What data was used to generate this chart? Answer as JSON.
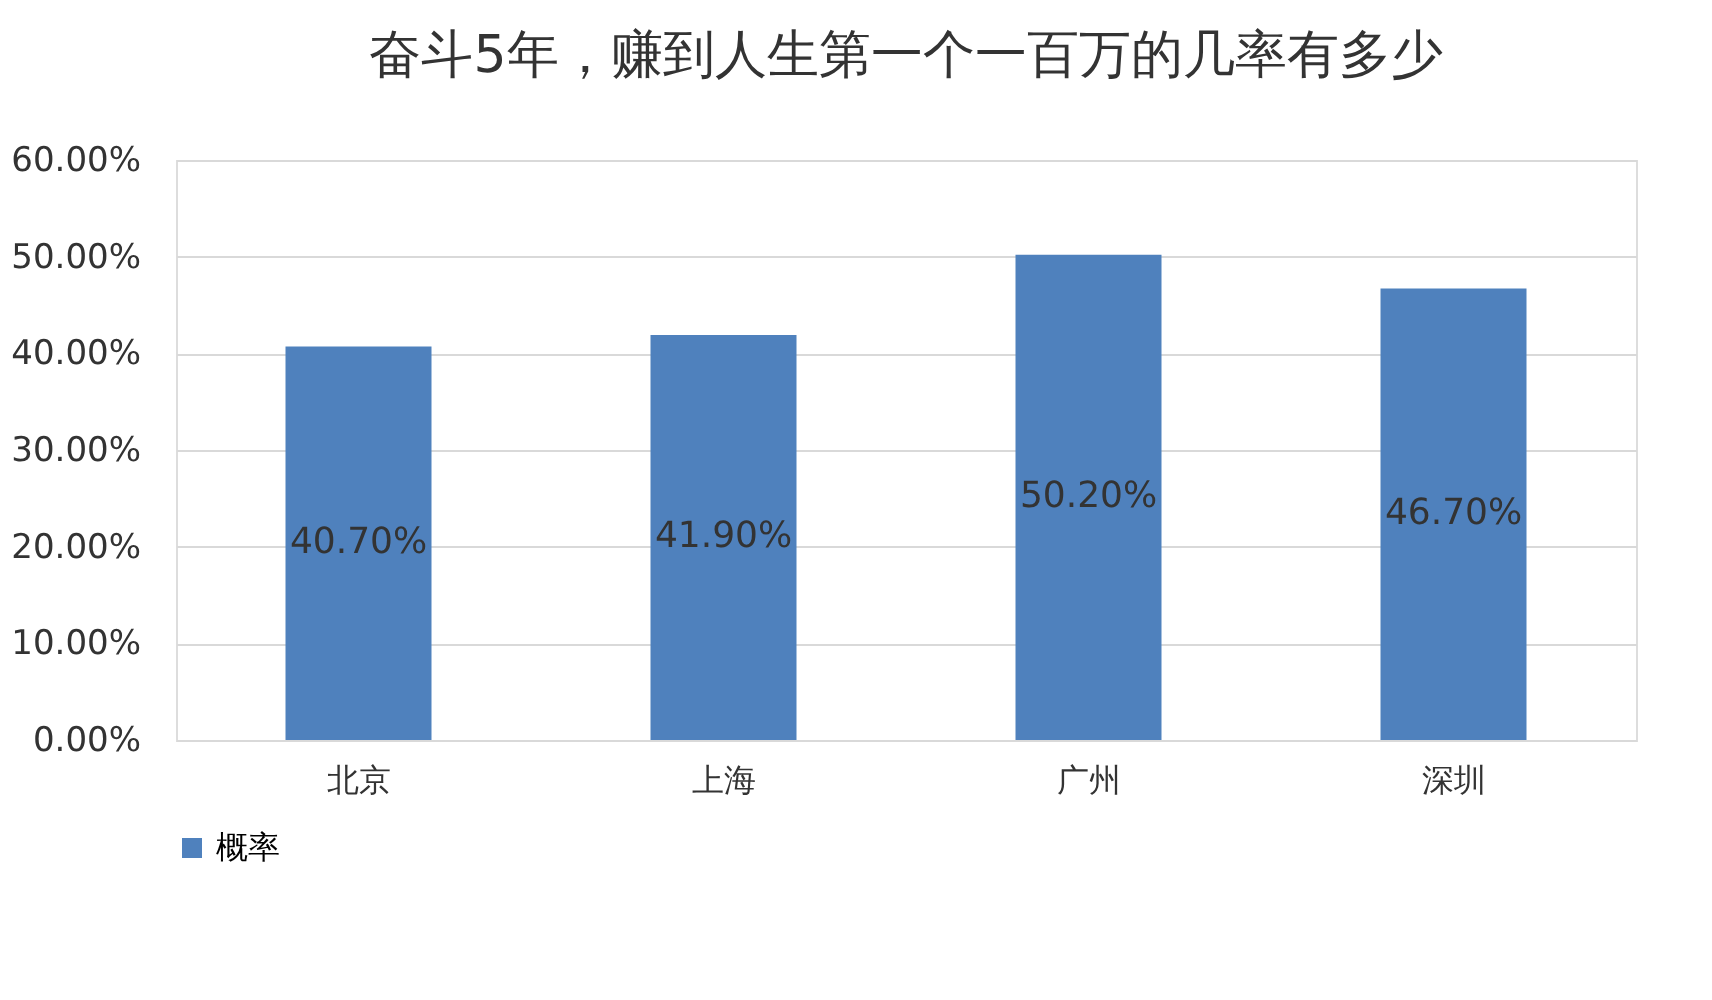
{
  "chart_data": {
    "type": "bar",
    "title": "奋斗5年，赚到人生第一个一百万的几率有多少",
    "categories": [
      "北京",
      "上海",
      "广州",
      "深圳"
    ],
    "series": [
      {
        "name": "概率",
        "color": "#4f81bd",
        "values": [
          40.7,
          41.9,
          50.2,
          46.7
        ],
        "value_labels": [
          "40.70%",
          "41.90%",
          "50.20%",
          "46.70%"
        ]
      }
    ],
    "ylim": [
      0,
      60
    ],
    "yticks": [
      {
        "value": 0,
        "label": "0.00%"
      },
      {
        "value": 10,
        "label": "10.00%"
      },
      {
        "value": 20,
        "label": "20.00%"
      },
      {
        "value": 30,
        "label": "30.00%"
      },
      {
        "value": 40,
        "label": "40.00%"
      },
      {
        "value": 50,
        "label": "50.00%"
      },
      {
        "value": 60,
        "label": "60.00%"
      }
    ],
    "grid": "y",
    "legend": "bottom"
  }
}
